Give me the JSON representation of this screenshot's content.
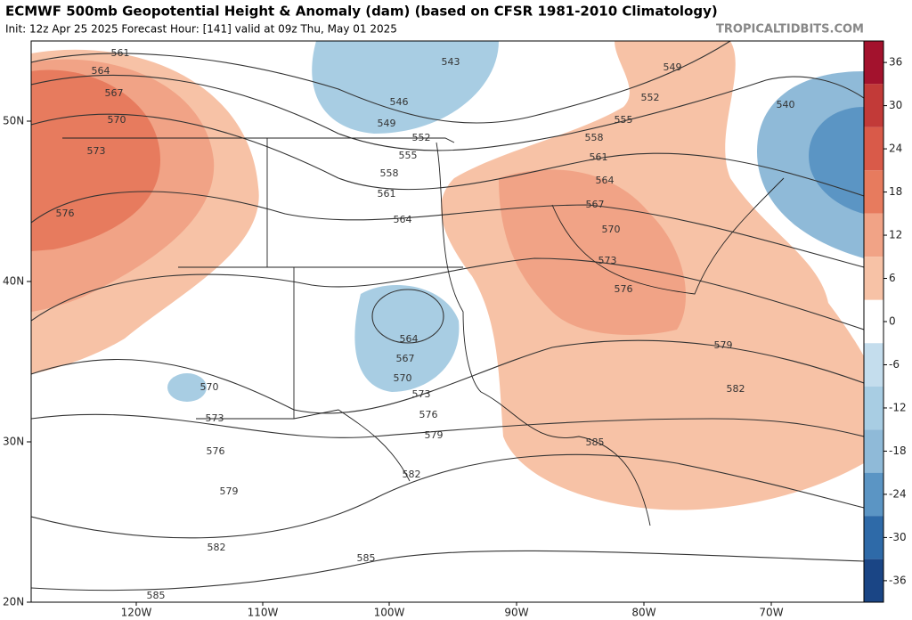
{
  "header": {
    "title": "ECMWF 500mb Geopotential Height & Anomaly (dam) (based on CFSR 1981-2010 Climatology)",
    "subtitle": "Init: 12z Apr 25 2025   Forecast Hour: [141]   valid at 09z Thu, May 01 2025",
    "credit": "TROPICALTIDBITS.COM"
  },
  "map": {
    "latitude_labels": [
      "50N",
      "40N",
      "30N",
      "20N"
    ],
    "longitude_labels": [
      "120W",
      "110W",
      "100W",
      "90W",
      "80W",
      "70W"
    ],
    "contour_labels": [
      561,
      564,
      567,
      570,
      573,
      576,
      543,
      546,
      549,
      552,
      555,
      558,
      561,
      564,
      567,
      570,
      573,
      576,
      579,
      582,
      585,
      549,
      552,
      555,
      558,
      561,
      564,
      540,
      564,
      567,
      570,
      573,
      576,
      579,
      582,
      585,
      570,
      573,
      576,
      579,
      582,
      585
    ]
  },
  "colorbar": {
    "ticks": [
      36,
      30,
      24,
      18,
      12,
      6,
      0,
      -6,
      -12,
      -18,
      -24,
      -30,
      -36
    ]
  }
}
